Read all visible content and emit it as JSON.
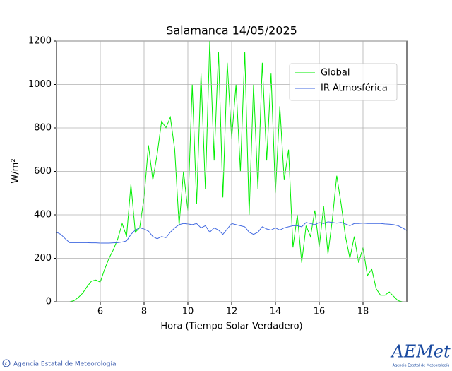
{
  "chart_data": {
    "type": "line",
    "title": "Salamanca 14/05/2025",
    "x_label": "Hora (Tiempo Solar Verdadero)",
    "y_label": "W/m²",
    "x": [
      4.0,
      4.2,
      4.4,
      4.6,
      4.8,
      5.0,
      5.2,
      5.4,
      5.6,
      5.8,
      6.0,
      6.2,
      6.4,
      6.6,
      6.8,
      7.0,
      7.2,
      7.4,
      7.6,
      7.8,
      8.0,
      8.2,
      8.4,
      8.6,
      8.8,
      9.0,
      9.2,
      9.4,
      9.6,
      9.8,
      10.0,
      10.2,
      10.4,
      10.6,
      10.8,
      11.0,
      11.2,
      11.4,
      11.6,
      11.8,
      12.0,
      12.2,
      12.4,
      12.6,
      12.8,
      13.0,
      13.2,
      13.4,
      13.6,
      13.8,
      14.0,
      14.2,
      14.4,
      14.6,
      14.8,
      15.0,
      15.2,
      15.4,
      15.6,
      15.8,
      16.0,
      16.2,
      16.4,
      16.6,
      16.8,
      17.0,
      17.2,
      17.4,
      17.6,
      17.8,
      18.0,
      18.2,
      18.4,
      18.6,
      18.8,
      19.0,
      19.2,
      19.4,
      19.6,
      19.8,
      20.0
    ],
    "series": [
      {
        "name": "Global",
        "color": "#00ee00",
        "values": [
          0,
          0,
          0,
          0,
          5,
          20,
          40,
          70,
          95,
          100,
          90,
          150,
          200,
          240,
          290,
          360,
          300,
          540,
          320,
          340,
          480,
          720,
          560,
          680,
          830,
          800,
          850,
          700,
          350,
          600,
          420,
          1000,
          450,
          1050,
          520,
          1200,
          650,
          1150,
          480,
          1100,
          750,
          1000,
          600,
          1150,
          400,
          1000,
          520,
          1100,
          650,
          1050,
          500,
          900,
          560,
          700,
          250,
          400,
          180,
          350,
          300,
          420,
          250,
          440,
          220,
          380,
          580,
          450,
          300,
          200,
          300,
          180,
          250,
          120,
          150,
          60,
          30,
          30,
          45,
          25,
          5,
          0,
          0
        ]
      },
      {
        "name": "IR Atmosférica",
        "color": "#4169e1",
        "values": [
          320,
          310,
          290,
          272,
          272,
          272,
          272,
          272,
          271,
          271,
          270,
          270,
          270,
          271,
          272,
          275,
          280,
          310,
          330,
          340,
          335,
          325,
          300,
          290,
          300,
          295,
          320,
          340,
          355,
          360,
          358,
          355,
          360,
          340,
          350,
          320,
          340,
          330,
          310,
          335,
          360,
          355,
          350,
          345,
          320,
          310,
          320,
          345,
          335,
          330,
          340,
          330,
          340,
          345,
          350,
          350,
          345,
          365,
          360,
          355,
          365,
          360,
          368,
          365,
          362,
          365,
          358,
          350,
          360,
          360,
          362,
          360,
          360,
          360,
          360,
          358,
          357,
          355,
          350,
          340,
          328
        ]
      }
    ],
    "xlim": [
      4,
      20
    ],
    "xticks": [
      6,
      8,
      10,
      12,
      14,
      16,
      18
    ],
    "ylim": [
      0,
      1200
    ],
    "yticks": [
      0,
      200,
      400,
      600,
      800,
      1000,
      1200
    ],
    "grid": true,
    "legend": "upper right"
  },
  "footer": {
    "copyright": "Agencia Estatal de Meteorología",
    "logo": "AEMet",
    "logo_subtitle": "Agencia Estatal de Meteorología"
  }
}
